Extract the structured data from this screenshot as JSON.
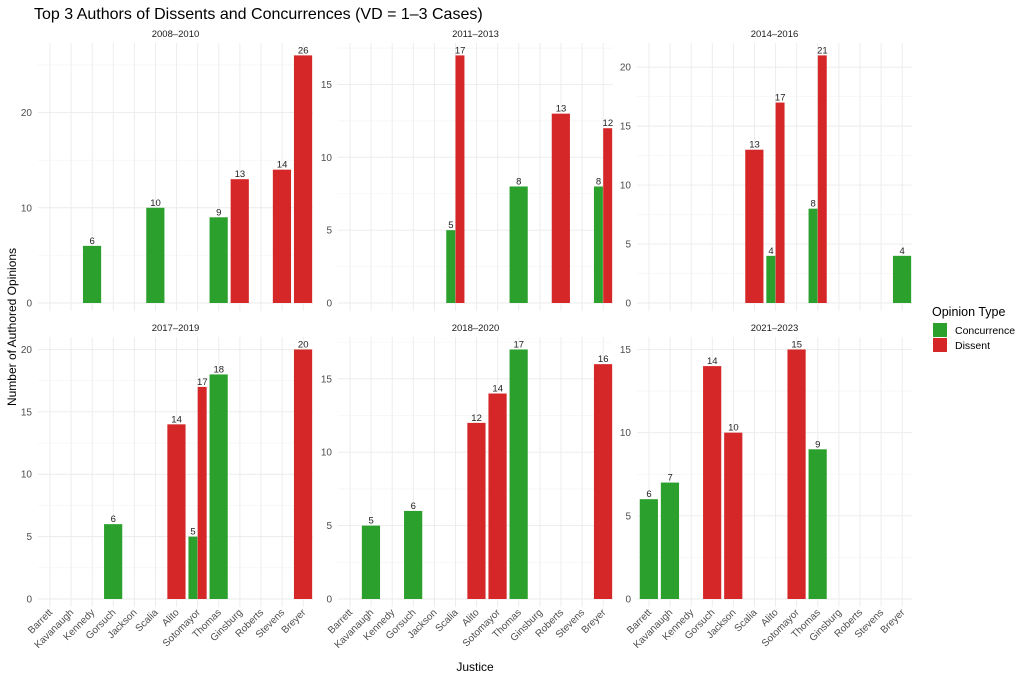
{
  "chart_data": {
    "type": "bar",
    "title": "Top 3 Authors of Dissents and Concurrences (VD = 1–3 Cases)",
    "xlabel": "Justice",
    "ylabel": "Number of Authored Opinions",
    "grid": true,
    "legend": {
      "title": "Opinion Type",
      "placement": "right",
      "entries": [
        {
          "name": "Concurrence",
          "color": "#2ca02c"
        },
        {
          "name": "Dissent",
          "color": "#d62728"
        }
      ]
    },
    "categories": [
      "Barrett",
      "Kavanaugh",
      "Kennedy",
      "Gorsuch",
      "Jackson",
      "Scalia",
      "Alito",
      "Sotomayor",
      "Thomas",
      "Ginsburg",
      "Roberts",
      "Stevens",
      "Breyer"
    ],
    "facets": [
      {
        "label": "2008–2010",
        "yticks": [
          0,
          10,
          20
        ],
        "ylim": [
          0,
          27.3
        ],
        "bars": [
          {
            "justice": "Kennedy",
            "type": "Concurrence",
            "value": 6
          },
          {
            "justice": "Scalia",
            "type": "Concurrence",
            "value": 10
          },
          {
            "justice": "Thomas",
            "type": "Concurrence",
            "value": 9
          },
          {
            "justice": "Ginsburg",
            "type": "Dissent",
            "value": 13
          },
          {
            "justice": "Stevens",
            "type": "Dissent",
            "value": 14
          },
          {
            "justice": "Breyer",
            "type": "Dissent",
            "value": 26
          }
        ]
      },
      {
        "label": "2011–2013",
        "yticks": [
          0,
          5,
          10,
          15
        ],
        "ylim": [
          0,
          17.85
        ],
        "bars": [
          {
            "justice": "Scalia",
            "type": "Concurrence",
            "value": 5
          },
          {
            "justice": "Scalia",
            "type": "Dissent",
            "value": 17
          },
          {
            "justice": "Thomas",
            "type": "Concurrence",
            "value": 8
          },
          {
            "justice": "Roberts",
            "type": "Dissent",
            "value": 13
          },
          {
            "justice": "Breyer",
            "type": "Concurrence",
            "value": 8
          },
          {
            "justice": "Breyer",
            "type": "Dissent",
            "value": 12
          }
        ]
      },
      {
        "label": "2014–2016",
        "yticks": [
          0,
          5,
          10,
          15,
          20
        ],
        "ylim": [
          0,
          22.05
        ],
        "bars": [
          {
            "justice": "Scalia",
            "type": "Dissent",
            "value": 13
          },
          {
            "justice": "Alito",
            "type": "Concurrence",
            "value": 4
          },
          {
            "justice": "Alito",
            "type": "Dissent",
            "value": 17
          },
          {
            "justice": "Thomas",
            "type": "Concurrence",
            "value": 8
          },
          {
            "justice": "Thomas",
            "type": "Dissent",
            "value": 21
          },
          {
            "justice": "Breyer",
            "type": "Concurrence",
            "value": 4
          }
        ]
      },
      {
        "label": "2017–2019",
        "yticks": [
          0,
          5,
          10,
          15,
          20
        ],
        "ylim": [
          0,
          21
        ],
        "bars": [
          {
            "justice": "Gorsuch",
            "type": "Concurrence",
            "value": 6
          },
          {
            "justice": "Alito",
            "type": "Dissent",
            "value": 14
          },
          {
            "justice": "Sotomayor",
            "type": "Concurrence",
            "value": 5
          },
          {
            "justice": "Sotomayor",
            "type": "Dissent",
            "value": 17
          },
          {
            "justice": "Thomas",
            "type": "Concurrence",
            "value": 18
          },
          {
            "justice": "Breyer",
            "type": "Dissent",
            "value": 20
          }
        ]
      },
      {
        "label": "2018–2020",
        "yticks": [
          0,
          5,
          10,
          15
        ],
        "ylim": [
          0,
          17.85
        ],
        "bars": [
          {
            "justice": "Kavanaugh",
            "type": "Concurrence",
            "value": 5
          },
          {
            "justice": "Gorsuch",
            "type": "Concurrence",
            "value": 6
          },
          {
            "justice": "Alito",
            "type": "Dissent",
            "value": 12
          },
          {
            "justice": "Sotomayor",
            "type": "Dissent",
            "value": 14
          },
          {
            "justice": "Thomas",
            "type": "Concurrence",
            "value": 17
          },
          {
            "justice": "Breyer",
            "type": "Dissent",
            "value": 16
          }
        ]
      },
      {
        "label": "2021–2023",
        "yticks": [
          0,
          5,
          10,
          15
        ],
        "ylim": [
          0,
          15.75
        ],
        "bars": [
          {
            "justice": "Barrett",
            "type": "Concurrence",
            "value": 6
          },
          {
            "justice": "Kavanaugh",
            "type": "Concurrence",
            "value": 7
          },
          {
            "justice": "Gorsuch",
            "type": "Dissent",
            "value": 14
          },
          {
            "justice": "Jackson",
            "type": "Dissent",
            "value": 10
          },
          {
            "justice": "Sotomayor",
            "type": "Dissent",
            "value": 15
          },
          {
            "justice": "Thomas",
            "type": "Concurrence",
            "value": 9
          }
        ]
      }
    ]
  }
}
